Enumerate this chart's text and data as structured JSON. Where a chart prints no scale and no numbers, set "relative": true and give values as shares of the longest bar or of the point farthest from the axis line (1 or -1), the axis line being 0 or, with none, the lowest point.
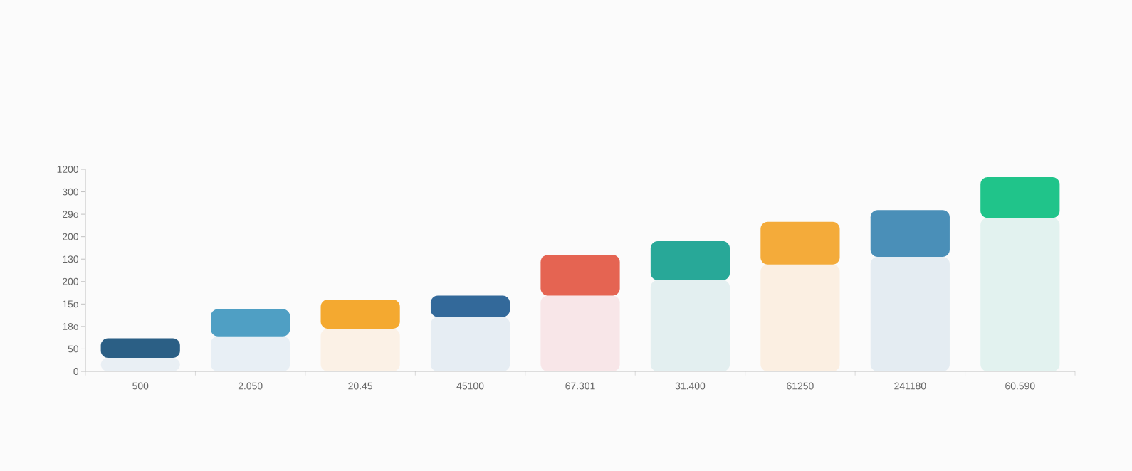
{
  "chart_data": {
    "type": "bar",
    "stacked": true,
    "relative": true,
    "categories": [
      "500",
      "2.050",
      "20.45",
      "45100",
      "67.301",
      "31.400",
      "61250",
      "241180",
      "60.590"
    ],
    "series": [
      {
        "colors": [
          "#e9eff4",
          "#e8eff5",
          "#fbf1e6",
          "#e6edf3",
          "#f8e6e8",
          "#e3eff0",
          "#fbefe2",
          "#e4ecf2",
          "#e2f2ef"
        ],
        "values": [
          0.07,
          0.18,
          0.22,
          0.28,
          0.39,
          0.47,
          0.55,
          0.59,
          0.79
        ]
      },
      {
        "colors": [
          "#2b5f85",
          "#4f9fc4",
          "#f4a930",
          "#33699a",
          "#e56452",
          "#28a898",
          "#f4ab3a",
          "#4a8fb8",
          "#20c48a"
        ],
        "values": [
          0.1,
          0.14,
          0.15,
          0.11,
          0.21,
          0.2,
          0.22,
          0.24,
          0.21
        ]
      }
    ],
    "annotations": [
      "0",
      "50",
      "18o",
      "15o",
      "200",
      "130",
      "200",
      "29o",
      "300",
      "1200"
    ]
  }
}
